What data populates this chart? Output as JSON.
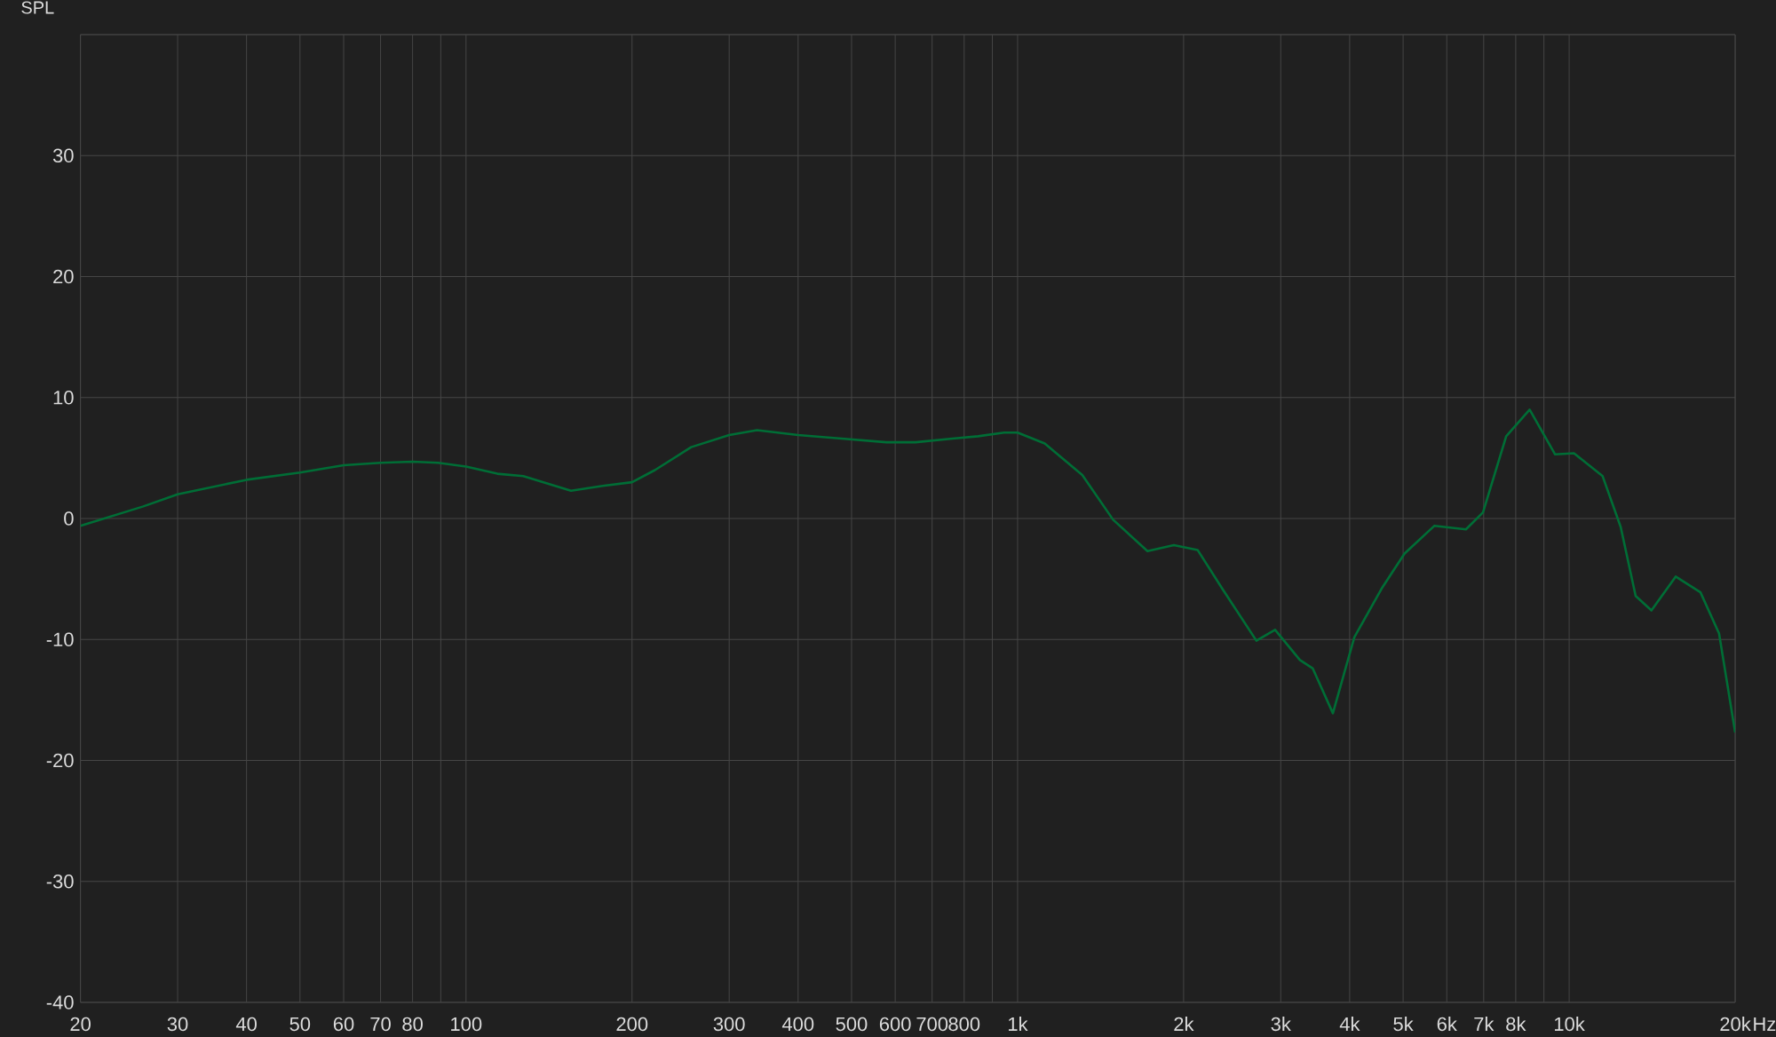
{
  "chart_data": {
    "type": "line",
    "ylabel": "SPL",
    "xlabel": "Hz",
    "grid": true,
    "marker": "none",
    "line_style": "solid",
    "log": "x",
    "xlim": [
      20,
      20000
    ],
    "ylim": [
      -40,
      40
    ],
    "xticks": [
      20,
      30,
      40,
      50,
      60,
      70,
      80,
      {
        "value": 90,
        "label": null
      },
      100,
      200,
      300,
      400,
      500,
      600,
      700,
      800,
      {
        "value": 900,
        "label": null
      },
      {
        "value": 1000,
        "label": "1k"
      },
      {
        "value": 2000,
        "label": "2k"
      },
      {
        "value": 3000,
        "label": "3k"
      },
      {
        "value": 4000,
        "label": "4k"
      },
      {
        "value": 5000,
        "label": "5k"
      },
      {
        "value": 6000,
        "label": "6k"
      },
      {
        "value": 7000,
        "label": "7k"
      },
      {
        "value": 8000,
        "label": "8k"
      },
      {
        "value": 9000,
        "label": null
      },
      {
        "value": 10000,
        "label": "10k"
      },
      {
        "value": 20000,
        "label": "20k"
      }
    ],
    "yticks": [
      -40,
      -30,
      -20,
      -10,
      0,
      10,
      20,
      30,
      {
        "value": 40,
        "label": null
      }
    ],
    "series": [
      {
        "color": "#006e36",
        "x": [
          20,
          26,
          30,
          40,
          50,
          60,
          70,
          80,
          89,
          100,
          114,
          127,
          155,
          177,
          200,
          220,
          256,
          300,
          337,
          400,
          480,
          578,
          653,
          762,
          848,
          945,
          1000,
          1120,
          1310,
          1490,
          1720,
          1920,
          2120,
          2350,
          2710,
          2930,
          3250,
          3430,
          3730,
          4080,
          4570,
          5030,
          5700,
          6500,
          6980,
          7690,
          8480,
          9430,
          10200,
          11500,
          12400,
          13200,
          14100,
          15600,
          17300,
          18700,
          20000
        ],
        "values": [
          -0.6,
          1.0,
          2.0,
          3.2,
          3.8,
          4.4,
          4.6,
          4.7,
          4.6,
          4.3,
          3.7,
          3.5,
          2.3,
          2.7,
          3.0,
          4.0,
          5.9,
          6.9,
          7.3,
          6.9,
          6.6,
          6.3,
          6.3,
          6.6,
          6.8,
          7.1,
          7.1,
          6.2,
          3.6,
          -0.1,
          -2.7,
          -2.2,
          -2.6,
          -5.8,
          -10.1,
          -9.2,
          -11.7,
          -12.4,
          -16.1,
          -9.8,
          -5.8,
          -2.9,
          -0.6,
          -0.9,
          0.5,
          6.8,
          9.0,
          5.3,
          5.4,
          3.5,
          -0.7,
          -6.4,
          -7.6,
          -4.8,
          -6.1,
          -9.5,
          -17.7
        ]
      }
    ]
  }
}
